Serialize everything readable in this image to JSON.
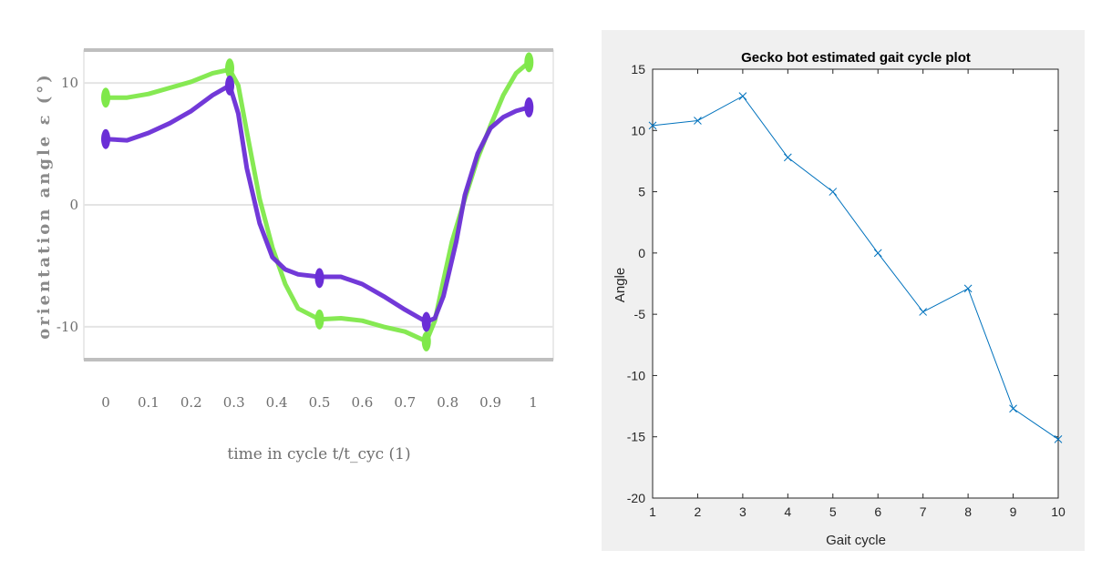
{
  "chart_data": [
    {
      "type": "line",
      "title": "",
      "xlabel": "time in cycle t/t_cyc (1)",
      "ylabel": "orientation angle ε (°)",
      "xlim": [
        0,
        1
      ],
      "ylim": [
        -12.7,
        12.7
      ],
      "xticks": [
        "0",
        "0.1",
        "0.2",
        "0.3",
        "0.4",
        "0.5",
        "0.6",
        "0.7",
        "0.8",
        "0.9",
        "1"
      ],
      "yticks": [
        "10",
        "0",
        "-10"
      ],
      "grid": "horizontal",
      "legend": "none",
      "series": [
        {
          "color": "#7fe84a",
          "x": [
            0,
            0.05,
            0.1,
            0.15,
            0.2,
            0.25,
            0.29,
            0.31,
            0.33,
            0.36,
            0.39,
            0.42,
            0.45,
            0.5,
            0.55,
            0.6,
            0.65,
            0.7,
            0.75,
            0.77,
            0.79,
            0.81,
            0.84,
            0.87,
            0.9,
            0.93,
            0.96,
            0.99
          ],
          "y": [
            8.8,
            8.8,
            9.1,
            9.6,
            10.1,
            10.8,
            11.1,
            9.8,
            6.0,
            0.5,
            -3.5,
            -6.5,
            -8.5,
            -9.4,
            -9.3,
            -9.5,
            -10.0,
            -10.4,
            -11.2,
            -9.5,
            -6.2,
            -3.0,
            0.5,
            3.8,
            6.5,
            9.0,
            10.8,
            11.7
          ],
          "markers": [
            [
              0,
              8.8
            ],
            [
              0.29,
              11.2
            ],
            [
              0.5,
              -9.4
            ],
            [
              0.75,
              -11.2
            ],
            [
              0.99,
              11.7
            ]
          ]
        },
        {
          "color": "#6a2ed6",
          "x": [
            0,
            0.05,
            0.1,
            0.15,
            0.2,
            0.25,
            0.29,
            0.31,
            0.33,
            0.36,
            0.39,
            0.42,
            0.45,
            0.5,
            0.55,
            0.6,
            0.65,
            0.7,
            0.75,
            0.77,
            0.79,
            0.82,
            0.84,
            0.87,
            0.9,
            0.93,
            0.96,
            0.99
          ],
          "y": [
            5.4,
            5.3,
            5.9,
            6.7,
            7.7,
            9.0,
            9.8,
            7.5,
            3.0,
            -1.5,
            -4.3,
            -5.3,
            -5.7,
            -5.9,
            -5.9,
            -6.5,
            -7.5,
            -8.6,
            -9.6,
            -9.3,
            -7.5,
            -3.0,
            0.8,
            4.2,
            6.3,
            7.2,
            7.7,
            8.0
          ],
          "markers": [
            [
              0,
              5.4
            ],
            [
              0.29,
              9.8
            ],
            [
              0.5,
              -6.0
            ],
            [
              0.75,
              -9.6
            ],
            [
              0.99,
              8.0
            ]
          ]
        }
      ]
    },
    {
      "type": "line",
      "title": "Gecko bot estimated gait cycle plot",
      "xlabel": "Gait cycle",
      "ylabel": "Angle",
      "xlim": [
        1,
        10
      ],
      "ylim": [
        -20,
        15
      ],
      "xticks": [
        "1",
        "2",
        "3",
        "4",
        "5",
        "6",
        "7",
        "8",
        "9",
        "10"
      ],
      "yticks": [
        "15",
        "10",
        "5",
        "0",
        "-5",
        "-10",
        "-15",
        "-20"
      ],
      "grid": "off",
      "legend": "none",
      "series": [
        {
          "color": "#0072bd",
          "marker": "x",
          "x": [
            1,
            2,
            3,
            4,
            5,
            6,
            7,
            8,
            9,
            10
          ],
          "y": [
            10.4,
            10.8,
            12.8,
            7.8,
            5.0,
            0.0,
            -4.8,
            -2.9,
            -12.7,
            -15.2
          ]
        }
      ]
    }
  ]
}
